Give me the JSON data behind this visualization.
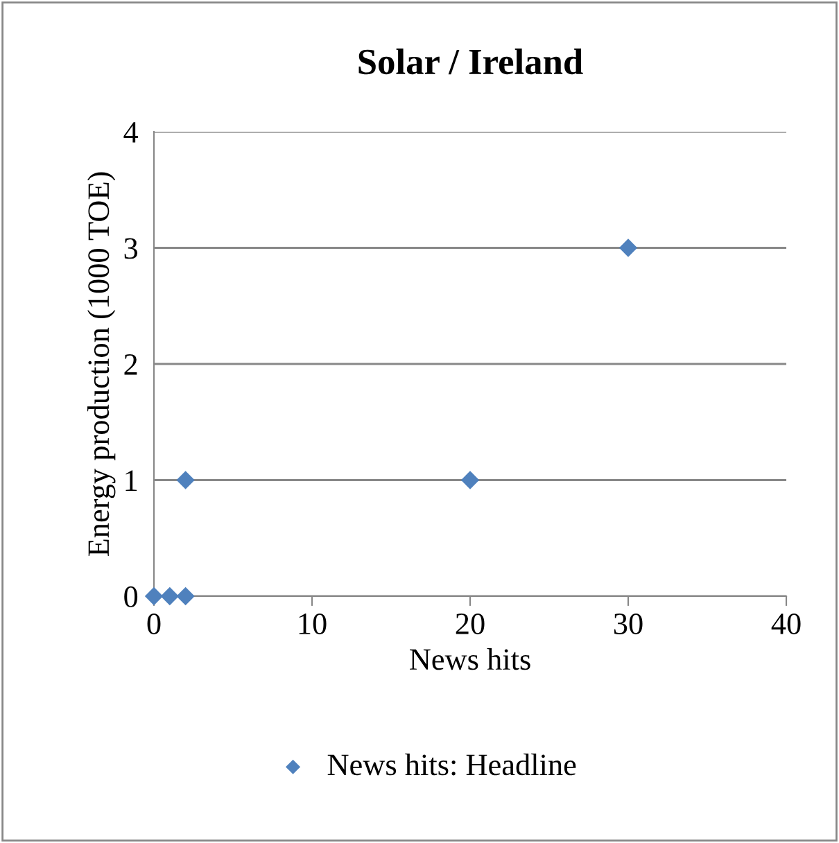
{
  "chart_data": {
    "type": "scatter",
    "title": "Solar / Ireland",
    "xlabel": "News hits",
    "ylabel": "Energy production (1000 TOE)",
    "x": [
      0,
      1,
      2,
      2,
      20,
      30
    ],
    "series": [
      {
        "name": "News hits: Headline",
        "color": "#4f81bd",
        "values": [
          0,
          0,
          0,
          1,
          1,
          3
        ]
      }
    ],
    "xlim": [
      0,
      40
    ],
    "xticks": [
      0,
      10,
      20,
      30,
      40
    ],
    "ylim": [
      0,
      4
    ],
    "yticks": [
      0,
      1,
      2,
      3,
      4
    ],
    "grid": "y",
    "legend": "bottom",
    "marker": "diamond"
  }
}
